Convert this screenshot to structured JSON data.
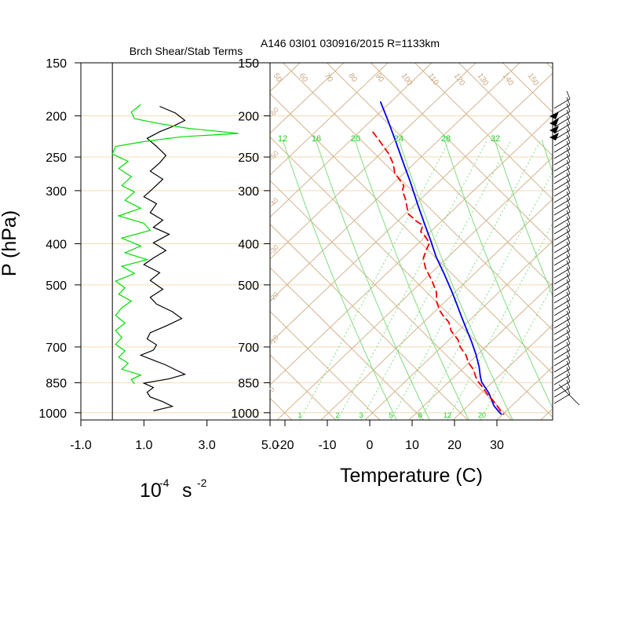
{
  "chart_data": [
    {
      "type": "line",
      "title": "Brch Shear/Stab Terms",
      "ylabel": "P (hPa)",
      "xlabel_main": "10",
      "xlabel_exp": "-4",
      "xlabel_unit": "s",
      "xlabel_unit_exp": "-2",
      "xlim": [
        -1.0,
        5.0
      ],
      "xticks": [
        "-1.0",
        "1.0",
        "3.0",
        "5.0"
      ],
      "y_log_scale": true,
      "ylim_hpa": [
        1040,
        150
      ],
      "pressure_ticks": [
        "150",
        "200",
        "250",
        "300",
        "400",
        "500",
        "700",
        "850",
        "1000"
      ],
      "zero_line": 0.0,
      "series": [
        {
          "color": "#000000",
          "points": [
            [
              1.5,
              190
            ],
            [
              2.0,
              197
            ],
            [
              2.3,
              205
            ],
            [
              1.9,
              212
            ],
            [
              1.5,
              218
            ],
            [
              1.1,
              226
            ],
            [
              1.4,
              236
            ],
            [
              1.7,
              248
            ],
            [
              1.5,
              258
            ],
            [
              1.2,
              270
            ],
            [
              1.6,
              282
            ],
            [
              1.3,
              296
            ],
            [
              1.0,
              310
            ],
            [
              1.4,
              322
            ],
            [
              1.2,
              338
            ],
            [
              1.6,
              352
            ],
            [
              1.3,
              366
            ],
            [
              1.8,
              380
            ],
            [
              1.3,
              398
            ],
            [
              1.7,
              415
            ],
            [
              1.3,
              432
            ],
            [
              1.0,
              448
            ],
            [
              1.5,
              468
            ],
            [
              1.2,
              488
            ],
            [
              1.6,
              512
            ],
            [
              1.2,
              535
            ],
            [
              1.4,
              555
            ],
            [
              1.9,
              578
            ],
            [
              2.2,
              600
            ],
            [
              1.7,
              625
            ],
            [
              1.2,
              648
            ],
            [
              1.1,
              670
            ],
            [
              1.4,
              692
            ],
            [
              1.3,
              712
            ],
            [
              0.9,
              732
            ],
            [
              1.3,
              752
            ],
            [
              1.7,
              772
            ],
            [
              2.0,
              792
            ],
            [
              2.3,
              812
            ],
            [
              1.8,
              832
            ],
            [
              1.0,
              852
            ],
            [
              1.3,
              872
            ],
            [
              1.1,
              895
            ],
            [
              1.2,
              918
            ],
            [
              1.6,
              942
            ],
            [
              1.9,
              966
            ],
            [
              1.3,
              990
            ]
          ]
        },
        {
          "color": "#00dd00",
          "points": [
            [
              0.9,
              188
            ],
            [
              0.6,
              196
            ],
            [
              0.7,
              203
            ],
            [
              1.4,
              208
            ],
            [
              2.4,
              214
            ],
            [
              4.0,
              220
            ],
            [
              2.2,
              224
            ],
            [
              1.0,
              230
            ],
            [
              0.1,
              236
            ],
            [
              0.0,
              246
            ],
            [
              0.5,
              256
            ],
            [
              0.2,
              266
            ],
            [
              0.6,
              278
            ],
            [
              0.3,
              292
            ],
            [
              0.7,
              302
            ],
            [
              0.4,
              316
            ],
            [
              0.9,
              330
            ],
            [
              0.2,
              344
            ],
            [
              1.0,
              358
            ],
            [
              1.2,
              372
            ],
            [
              0.3,
              388
            ],
            [
              0.9,
              405
            ],
            [
              0.4,
              420
            ],
            [
              1.1,
              436
            ],
            [
              0.3,
              452
            ],
            [
              0.7,
              470
            ],
            [
              0.1,
              490
            ],
            [
              0.4,
              508
            ],
            [
              0.2,
              526
            ],
            [
              0.6,
              546
            ],
            [
              0.3,
              566
            ],
            [
              0.1,
              590
            ],
            [
              0.4,
              615
            ],
            [
              0.1,
              640
            ],
            [
              0.3,
              665
            ],
            [
              0.1,
              690
            ],
            [
              0.4,
              715
            ],
            [
              0.2,
              740
            ],
            [
              0.5,
              765
            ],
            [
              0.3,
              790
            ],
            [
              0.9,
              815
            ],
            [
              0.6,
              835
            ],
            [
              0.7,
              855
            ]
          ]
        }
      ]
    },
    {
      "type": "line",
      "title": "A146 03I01 030916/2015 R=1133km",
      "ylabel": "",
      "xlabel": "Temperature (C)",
      "skewt": true,
      "xticks": [
        "-20",
        "-10",
        "0",
        "10",
        "20",
        "30"
      ],
      "pressure_ticks": [
        "150",
        "200",
        "250",
        "300",
        "400",
        "500",
        "700",
        "850",
        "1000"
      ],
      "theta_labels": [
        "50",
        "60",
        "70",
        "80",
        "90",
        "100",
        "110",
        "120",
        "130",
        "140",
        "150"
      ],
      "mixing_ratio_labels": [
        "1",
        "2",
        "3",
        "5",
        "8",
        "12",
        "20"
      ],
      "moist_adiabat_labels": [
        "12",
        "16",
        "20",
        "24",
        "28",
        "32"
      ],
      "isotherm_side_labels": [
        "-60",
        "-50",
        "-40",
        "-30",
        "-20",
        "-10",
        "0"
      ],
      "series": [
        {
          "color": "#0000ee",
          "dash": "solid",
          "points": [
            [
              -31,
              185
            ],
            [
              -34,
              205
            ],
            [
              -38,
              230
            ],
            [
              -43,
              262
            ],
            [
              -46,
              285
            ],
            [
              -52,
              325
            ],
            [
              -56,
              360
            ],
            [
              -59,
              392
            ],
            [
              -63,
              430
            ],
            [
              -64,
              470
            ],
            [
              -66,
              520
            ],
            [
              -68,
              555
            ],
            [
              -70,
              590
            ],
            [
              -72,
              630
            ],
            [
              -74,
              680
            ],
            [
              -77,
              730
            ],
            [
              -81,
              780
            ],
            [
              -86,
              822
            ],
            [
              -88,
              848
            ],
            [
              -87,
              870
            ],
            [
              -86,
              900
            ],
            [
              -87,
              930
            ],
            [
              -88,
              962
            ],
            [
              -86,
              990
            ],
            [
              -84,
              1010
            ]
          ]
        },
        {
          "color": "#ee0000",
          "dash": "dashed",
          "points": [
            [
              -61,
              218
            ],
            [
              -58,
              230
            ],
            [
              -55,
              246
            ],
            [
              -56,
              260
            ],
            [
              -60,
              272
            ],
            [
              -57,
              292
            ],
            [
              -62,
              300
            ],
            [
              -64,
              315
            ],
            [
              -70,
              340
            ],
            [
              -64,
              355
            ],
            [
              -59,
              362
            ],
            [
              -66,
              375
            ],
            [
              -64,
              380
            ],
            [
              -62,
              398
            ],
            [
              -70,
              412
            ],
            [
              -80,
              432
            ],
            [
              -84,
              456
            ],
            [
              -84,
              488
            ],
            [
              -86,
              520
            ],
            [
              -92,
              548
            ],
            [
              -94,
              575
            ],
            [
              -93,
              590
            ],
            [
              -90,
              612
            ],
            [
              -93,
              642
            ],
            [
              -90,
              672
            ],
            [
              -92,
              702
            ],
            [
              -90,
              732
            ],
            [
              -92,
              762
            ],
            [
              -90,
              792
            ],
            [
              -92,
              822
            ],
            [
              -92,
              848
            ],
            [
              -90,
              872
            ],
            [
              -89,
              900
            ],
            [
              -86,
              930
            ],
            [
              -84,
              960
            ],
            [
              -83,
              990
            ],
            [
              -81,
              1010
            ]
          ]
        }
      ]
    }
  ]
}
